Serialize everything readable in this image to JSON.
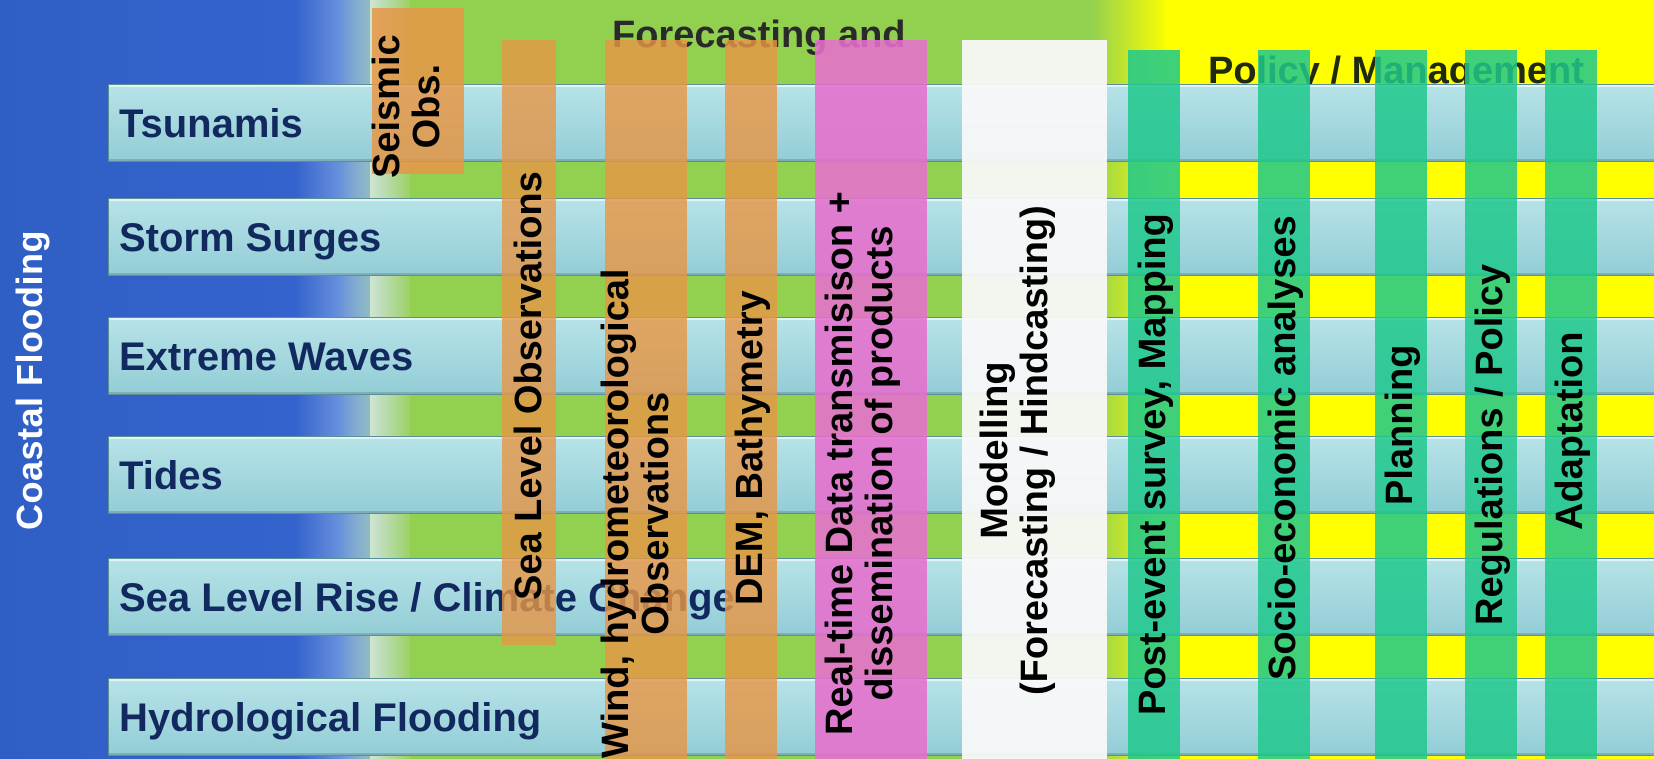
{
  "side_title": "Coastal Flooding",
  "group_headers": {
    "forecasting": "Forecasting and",
    "policy": "Policy / Management"
  },
  "rows": [
    {
      "label": "Tsunamis"
    },
    {
      "label": "Storm Surges"
    },
    {
      "label": "Extreme Waves"
    },
    {
      "label": "Tides"
    },
    {
      "label": "Sea Level Rise / Climate Change"
    },
    {
      "label": "Hydrological Flooding"
    }
  ],
  "columns": {
    "seismic": {
      "line1": "Seismic",
      "line2": "Obs."
    },
    "sealevel": {
      "line1": "Sea Level Observations"
    },
    "wind": {
      "line1": "Wind, hydrometeorological",
      "line2": "Observations"
    },
    "dem": {
      "line1": "DEM, Bathymetry"
    },
    "realtime": {
      "line1": "Real-time Data transmisison +",
      "line2": "dissemination of products"
    },
    "modelling": {
      "line1": "Modelling",
      "line2": "(Forecasting / Hindcasting)"
    },
    "post": {
      "line1": "Post-event survey, Mapping"
    },
    "socio": {
      "line1": "Socio-economic analyses"
    },
    "planning": {
      "line1": "Planning"
    },
    "regulations": {
      "line1": "Regulations / Policy"
    },
    "adaptation": {
      "line1": "Adaptation"
    }
  },
  "colors": {
    "blue_zone": "#3563cd",
    "green_zone": "#92d050",
    "yellow_zone": "#ffff00",
    "row_fill": "#a5d8df",
    "row_text": "#12295f",
    "observation_columns": "#e6964a",
    "realtime_column": "#e66ecd",
    "modelling_column": "#f8f8f8",
    "policy_columns": "#1ec88c"
  }
}
